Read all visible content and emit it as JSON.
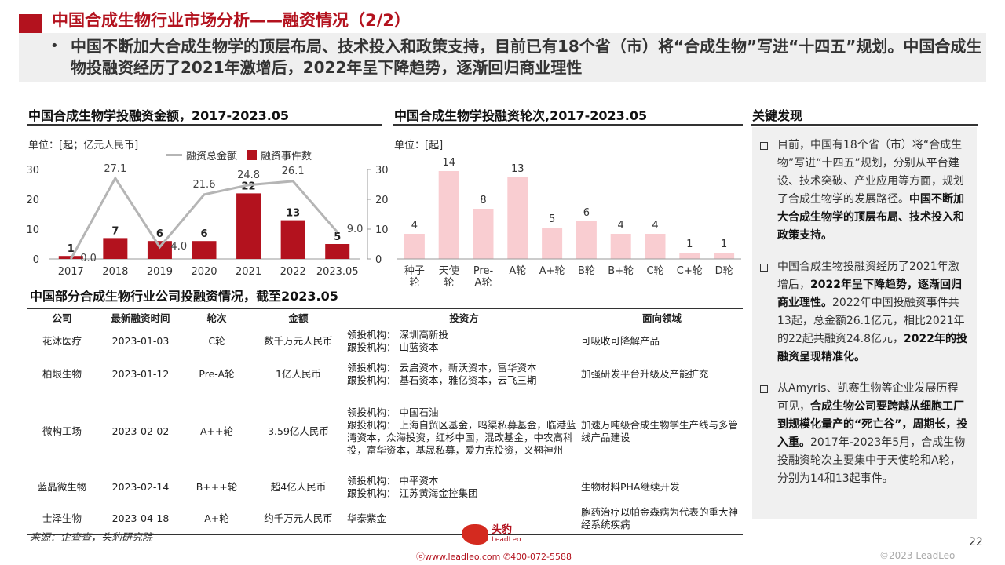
{
  "header": {
    "title": "中国合成生物行业市场分析——融资情况（2/2）",
    "summary": "中国不断加大合成生物学的顶层布局、技术投入和政策支持，目前已有18个省（市）将“合成生物”写进“十四五”规划。中国合成生物投融资经历了2021年激增后，2022年呈下降趋势，逐渐回归商业理性"
  },
  "left_chart": {
    "section_title": "中国合成生物学投融资金额，2017-2023.05",
    "unit": "单位：[起；亿元人民币]",
    "legend_line": "融资总金额",
    "legend_bar": "融资事件数"
  },
  "mid_chart": {
    "section_title": "中国合成生物学投融资轮次,2017-2023.05",
    "unit": "单位：[起]"
  },
  "chart_data": [
    {
      "type": "bar",
      "categories": [
        "2017",
        "2018",
        "2019",
        "2020",
        "2021",
        "2022",
        "2023.05"
      ],
      "series": [
        {
          "name": "融资事件数",
          "type": "bar",
          "axis": "left",
          "values": [
            1,
            7,
            6,
            6,
            22,
            13,
            5
          ]
        },
        {
          "name": "融资总金额",
          "type": "line",
          "axis": "right",
          "values": [
            0.0,
            27.1,
            4.0,
            21.6,
            24.8,
            26.1,
            9.0
          ]
        }
      ],
      "ylim": [
        0,
        30
      ],
      "yticks": [
        0,
        10,
        20,
        30
      ],
      "y2lim": [
        0,
        30
      ],
      "y2ticks": [
        0,
        10,
        20,
        30
      ],
      "bar_color": "#b3121e",
      "line_color": "#b5b5b5",
      "legend_position": "top"
    },
    {
      "type": "bar",
      "categories": [
        "种子轮",
        "天使轮",
        "Pre-A轮",
        "A轮",
        "A+轮",
        "B轮",
        "B+轮",
        "C轮",
        "C+轮",
        "D轮"
      ],
      "values": [
        4,
        14,
        8,
        13,
        5,
        6,
        4,
        4,
        1,
        1
      ],
      "ylim": [
        0,
        15
      ],
      "bar_color": "#f9cdd1"
    }
  ],
  "table": {
    "section_title": "中国部分合成生物行业公司投融资情况，截至2023.05",
    "headers": [
      "公司",
      "最新融资时间",
      "轮次",
      "金额",
      "投资方",
      "面向领域"
    ],
    "rows": [
      {
        "company": "花沐医疗",
        "date": "2023-01-03",
        "round": "C轮",
        "amount": "数千万元人民币",
        "investors": [
          "领投机构：  深圳高新投",
          "跟投机构：  山蓝资本"
        ],
        "field": "可吸收可降解产品"
      },
      {
        "company": "柏垠生物",
        "date": "2023-01-12",
        "round": "Pre-A轮",
        "amount": "1亿人民币",
        "investors": [
          "领投机构：  云启资本，新沃资本，富华资本",
          "跟投机构：  基石资本，雅亿资本，云飞三期"
        ],
        "field": "加强研发平台升级及产能扩充"
      },
      {
        "company": "微构工场",
        "date": "2023-02-02",
        "round": "A++轮",
        "amount": "3.59亿人民币",
        "investors": [
          "领投机构：  中国石油",
          "跟投机构：    上海自贸区基金，鸣渠私募基金，临港蓝湾资本，众海投资，红杉中国，混改基金，中农高科投，富华资本，基晟私募，爱力克投资，义翘神州"
        ],
        "field": "加速万吨级合成生物学生产线与多管线产品建设"
      },
      {
        "company": "蓝晶微生物",
        "date": "2023-02-14",
        "round": "B+++轮",
        "amount": "超4亿人民币",
        "investors": [
          "领投机构：  中平资本",
          "跟投机构：  江苏黄海金控集团"
        ],
        "field": "生物材料PHA继续开发"
      },
      {
        "company": "士泽生物",
        "date": "2023-04-18",
        "round": "A+轮",
        "amount": "约千万元人民币",
        "investors": [
          "华泰紫金"
        ],
        "field": "胞药治疗以帕金森病为代表的重大神经系统疾病"
      }
    ]
  },
  "findings": {
    "section_title": "关键发现",
    "items": [
      {
        "parts": [
          {
            "text": "目前，中国有18个省（市）将“合成生物”写进“十四五”规划，分别从平台建设、技术突破、产业应用等方面，规划了合成生物学的发展路径。",
            "bold": false
          },
          {
            "text": "中国不断加大合成生物学的顶层布局、技术投入和政策支持。",
            "bold": true
          }
        ]
      },
      {
        "parts": [
          {
            "text": "中国合成生物投融资经历了2021年激增后，",
            "bold": false
          },
          {
            "text": "2022年呈下降趋势，逐渐回归商业理性。",
            "bold": true
          },
          {
            "text": "2022年中国投融资事件共13起，总金额26.1亿元，相比2021年的22起共融资24.8亿元，",
            "bold": false
          },
          {
            "text": "2022年的投融资呈现精准化。",
            "bold": true
          }
        ]
      },
      {
        "parts": [
          {
            "text": "从Amyris、凯赛生物等企业发展历程可见，",
            "bold": false
          },
          {
            "text": "合成生物公司要跨越从细胞工厂到规模化量产的“死亡谷”，周期长，投入重。",
            "bold": true
          },
          {
            "text": "2017年-2023年5月，合成生物投融资轮次主要集中于天使轮和A轮，分别为14和13起事件。",
            "bold": false
          }
        ]
      }
    ]
  },
  "footer": {
    "source": "来源：企查查，头豹研究院",
    "logo_cn": "头豹",
    "logo_en": "LeadLeo",
    "contact": "ⓔwww.leadleo.com   ✆400-072-5588",
    "page_number": "22",
    "copyright": "©2023 LeadLeo"
  }
}
